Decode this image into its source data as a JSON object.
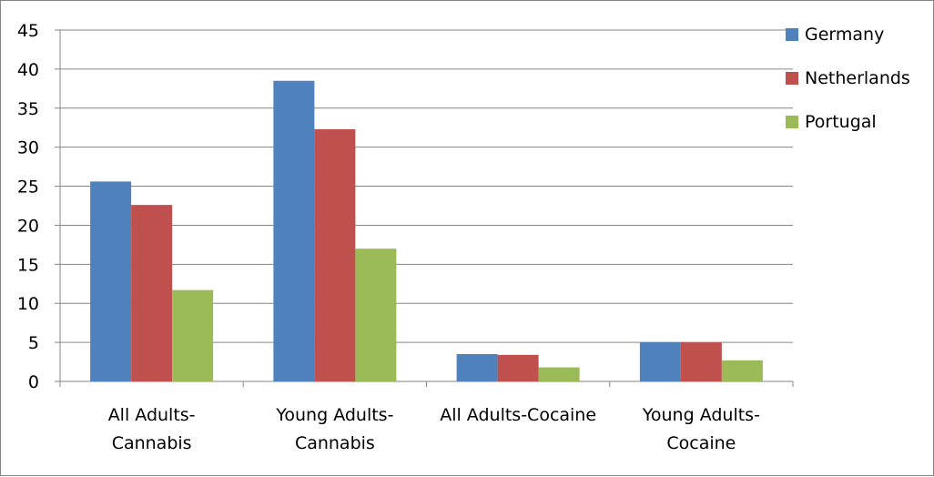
{
  "chart_data": {
    "type": "bar",
    "title": "",
    "xlabel": "",
    "ylabel": "",
    "categories": [
      [
        "All Adults-",
        "Cannabis"
      ],
      [
        "Young Adults-",
        "Cannabis"
      ],
      [
        "All Adults-Cocaine"
      ],
      [
        "Young Adults-",
        "Cocaine"
      ]
    ],
    "series": [
      {
        "name": "Germany",
        "color": "#4F81BD",
        "values": [
          25.6,
          38.5,
          3.5,
          5.0
        ]
      },
      {
        "name": "Netherlands",
        "color": "#C0504D",
        "values": [
          22.6,
          32.3,
          3.4,
          5.0
        ]
      },
      {
        "name": "Portugal",
        "color": "#9BBB59",
        "values": [
          11.7,
          17.0,
          1.8,
          2.7
        ]
      }
    ],
    "ylim": [
      0,
      45
    ],
    "yticks": [
      0,
      5,
      10,
      15,
      20,
      25,
      30,
      35,
      40,
      45
    ],
    "grid": true,
    "legend_position": "right"
  }
}
